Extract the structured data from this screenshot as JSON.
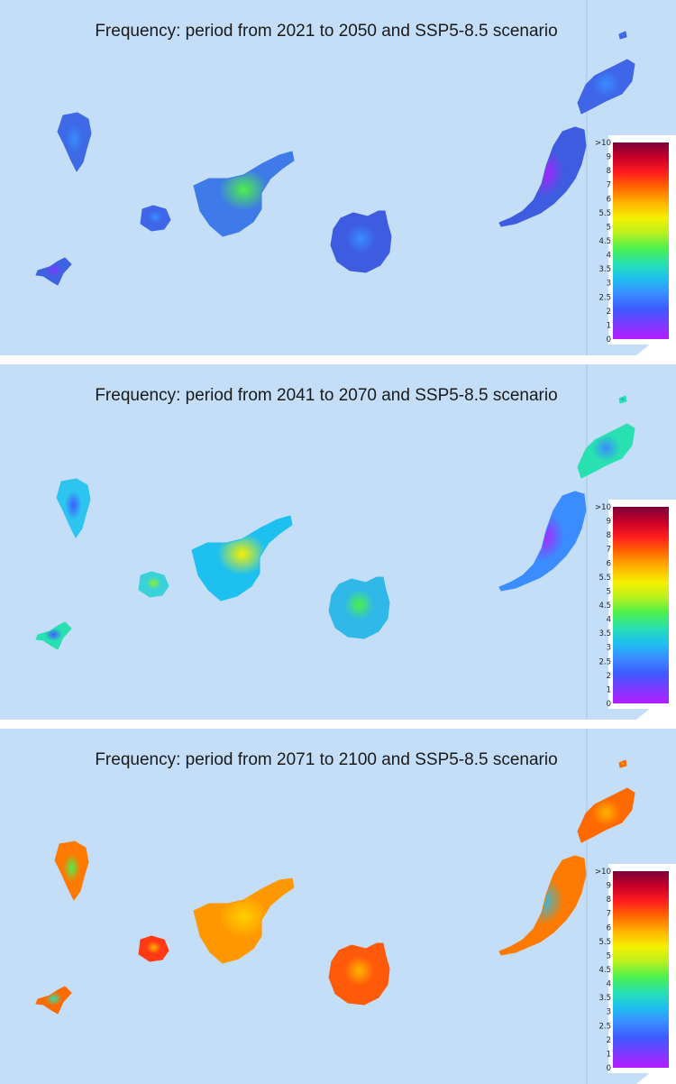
{
  "colors": {
    "sea": "#c4def8",
    "scale": [
      "#b41cff",
      "#7a3cff",
      "#3d5cff",
      "#3a8cff",
      "#1ec0f0",
      "#28e0b0",
      "#4cf04c",
      "#b8f020",
      "#f5f000",
      "#ffb400",
      "#ff6a00",
      "#ff1e1e",
      "#c80028",
      "#7a0038"
    ]
  },
  "legend": {
    "ticks": [
      ">10",
      "9",
      "8",
      "7",
      "6",
      "5.5",
      "5",
      "4.5",
      "4",
      "3.5",
      "3",
      "2.5",
      "2",
      "1",
      "0"
    ]
  },
  "panels": [
    {
      "title": "Frequency: period from 2021 to 2050 and SSP5-8.5 scenario",
      "islands": {
        "la_palma": {
          "base": "#3e6ae6",
          "hot": "#3a8cff"
        },
        "el_hierro": {
          "base": "#3e62e0",
          "hot": "#7a3cff"
        },
        "la_gomera": {
          "base": "#3e66e6",
          "hot": "#3a8cff"
        },
        "tenerife": {
          "base": "#3e7ae8",
          "hot": "#4cf04c"
        },
        "gran_canaria": {
          "base": "#3d5ce0",
          "hot": "#3a8cff"
        },
        "fuerteventura": {
          "base": "#3d5ce0",
          "hot": "#b41cff"
        },
        "lanzarote": {
          "base": "#3e66e6",
          "hot": "#3a8cff"
        }
      }
    },
    {
      "title": "Frequency: period from 2041 to 2070 and SSP5-8.5 scenario",
      "islands": {
        "la_palma": {
          "base": "#2ec4f0",
          "hot": "#3d5cff"
        },
        "el_hierro": {
          "base": "#28e0b0",
          "hot": "#3d5cff"
        },
        "la_gomera": {
          "base": "#3ad2d8",
          "hot": "#8cf030"
        },
        "tenerife": {
          "base": "#1ec0f0",
          "hot": "#f5f000"
        },
        "gran_canaria": {
          "base": "#30b8e8",
          "hot": "#4cf04c"
        },
        "fuerteventura": {
          "base": "#3a8cff",
          "hot": "#b41cff"
        },
        "lanzarote": {
          "base": "#28e0b0",
          "hot": "#3a8cff"
        }
      }
    },
    {
      "title": "Frequency: period from 2071 to 2100 and SSP5-8.5 scenario",
      "islands": {
        "la_palma": {
          "base": "#ff7a00",
          "hot": "#4cf04c"
        },
        "el_hierro": {
          "base": "#ff6a00",
          "hot": "#28e0b0"
        },
        "la_gomera": {
          "base": "#ff3a14",
          "hot": "#ffb400"
        },
        "tenerife": {
          "base": "#ff9800",
          "hot": "#ffd000"
        },
        "gran_canaria": {
          "base": "#ff5a0a",
          "hot": "#ffb400"
        },
        "fuerteventura": {
          "base": "#ff7a00",
          "hot": "#1ec0f0"
        },
        "lanzarote": {
          "base": "#ff6a00",
          "hot": "#ffb400"
        }
      }
    }
  ]
}
